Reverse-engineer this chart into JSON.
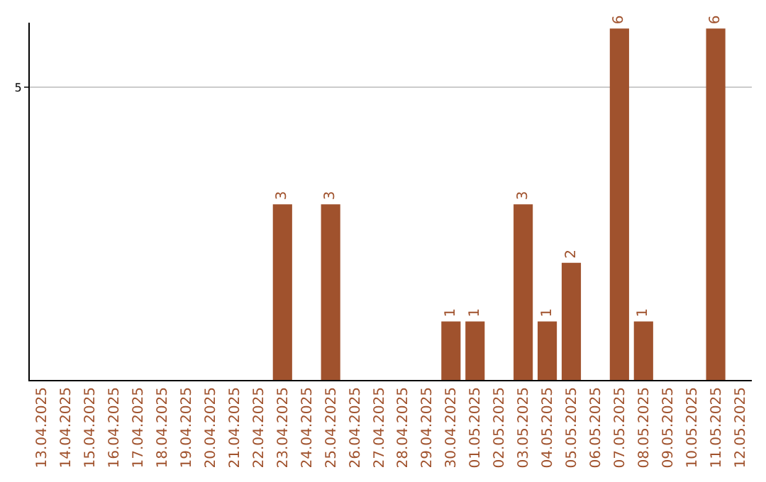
{
  "chart_data": {
    "type": "bar",
    "categories": [
      "13.04.2025",
      "14.04.2025",
      "15.04.2025",
      "16.04.2025",
      "17.04.2025",
      "18.04.2025",
      "19.04.2025",
      "20.04.2025",
      "21.04.2025",
      "22.04.2025",
      "23.04.2025",
      "24.04.2025",
      "25.04.2025",
      "26.04.2025",
      "27.04.2025",
      "28.04.2025",
      "29.04.2025",
      "30.04.2025",
      "01.05.2025",
      "02.05.2025",
      "03.05.2025",
      "04.05.2025",
      "05.05.2025",
      "06.05.2025",
      "07.05.2025",
      "08.05.2025",
      "09.05.2025",
      "10.05.2025",
      "11.05.2025",
      "12.05.2025"
    ],
    "values": [
      null,
      null,
      null,
      null,
      null,
      null,
      null,
      null,
      null,
      null,
      3,
      null,
      3,
      null,
      null,
      null,
      null,
      1,
      1,
      null,
      3,
      1,
      2,
      null,
      6,
      1,
      null,
      null,
      6,
      null
    ],
    "color": "#a0522d",
    "ylim": [
      0,
      6.1
    ],
    "yticks": [
      5
    ],
    "grid": "y",
    "data_labels": true
  }
}
